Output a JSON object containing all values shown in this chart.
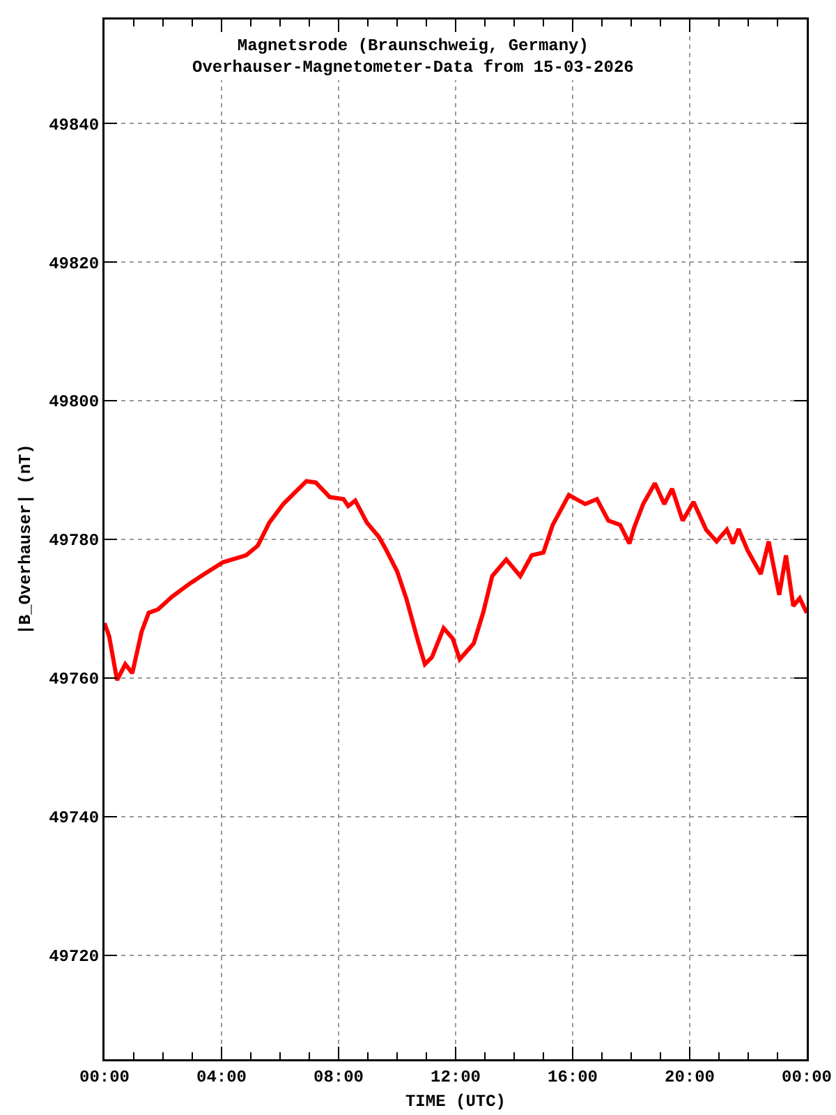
{
  "chart_data": {
    "type": "line",
    "title": "Magnetsrode (Braunschweig, Germany)",
    "subtitle": "Overhauser-Magnetometer-Data from 15-03-2026",
    "xlabel": "TIME (UTC)",
    "ylabel": "|B_Overhauser| (nT)",
    "grid": true,
    "legend": false,
    "marker": "none",
    "line_style": "solid",
    "xlim": [
      0,
      24
    ],
    "xticks": [
      {
        "value": 0,
        "label": "00:00"
      },
      {
        "value": 4,
        "label": "04:00"
      },
      {
        "value": 8,
        "label": "08:00"
      },
      {
        "value": 12,
        "label": "12:00"
      },
      {
        "value": 16,
        "label": "16:00"
      },
      {
        "value": 20,
        "label": "20:00"
      },
      {
        "value": 24,
        "label": "00:00"
      }
    ],
    "ylim": [
      49705,
      49855
    ],
    "yticks": [
      49720,
      49740,
      49760,
      49780,
      49800,
      49820,
      49840
    ],
    "series": [
      {
        "color": "#ff0000",
        "x": [
          0,
          0.16,
          0.43,
          0.71,
          0.95,
          1.27,
          1.51,
          1.83,
          2.3,
          2.94,
          3.41,
          4.05,
          4.84,
          5.24,
          5.63,
          6.11,
          6.9,
          7.22,
          7.7,
          8.17,
          8.33,
          8.57,
          8.97,
          9.37,
          9.6,
          10,
          10.32,
          10.71,
          10.95,
          11.19,
          11.59,
          11.9,
          12.14,
          12.62,
          12.94,
          13.25,
          13.73,
          14.21,
          14.6,
          15,
          15.32,
          15.87,
          16.43,
          16.83,
          17.22,
          17.62,
          17.94,
          18.1,
          18.41,
          18.81,
          19.13,
          19.4,
          19.76,
          20.13,
          20.56,
          20.92,
          21.27,
          21.48,
          21.67,
          21.98,
          22.43,
          22.7,
          23.06,
          23.29,
          23.54,
          23.76,
          24
        ],
        "values": [
          49767.9,
          49766,
          49759.7,
          49762,
          49760.7,
          49766.7,
          49769.4,
          49769.9,
          49771.7,
          49773.7,
          49775,
          49776.7,
          49777.7,
          49779.1,
          49782.4,
          49785.1,
          49788.4,
          49788.2,
          49786.1,
          49785.8,
          49784.8,
          49785.6,
          49782.4,
          49780.4,
          49778.7,
          49775.4,
          49771.4,
          49765.4,
          49762,
          49763,
          49767.2,
          49765.7,
          49762.7,
          49765,
          49769.4,
          49774.7,
          49777.1,
          49774.7,
          49777.7,
          49778.1,
          49782.1,
          49786.4,
          49785.1,
          49785.8,
          49782.7,
          49782.1,
          49779.4,
          49781.7,
          49785.1,
          49788.1,
          49785.1,
          49787.3,
          49782.7,
          49785.4,
          49781.4,
          49779.7,
          49781.4,
          49779.4,
          49781.5,
          49778.4,
          49775,
          49779.7,
          49772,
          49777.7,
          49770.4,
          49771.5,
          49769.4
        ]
      }
    ]
  }
}
